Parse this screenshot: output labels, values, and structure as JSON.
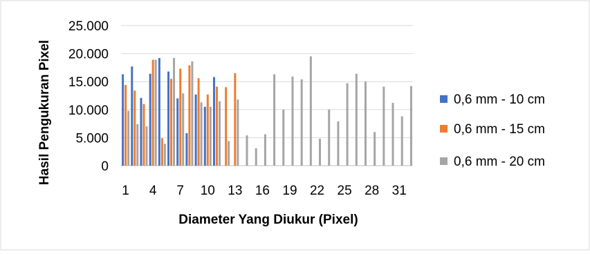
{
  "chart_data": {
    "type": "bar",
    "title": "",
    "xlabel": "Diameter Yang Diukur (Pixel)",
    "ylabel": "Hasil Pengukuran Pixel",
    "ylim": [
      0,
      25000
    ],
    "y_ticks": [
      "0",
      "5.000",
      "10.000",
      "15.000",
      "20.000",
      "25.000"
    ],
    "x_ticks": [
      "1",
      "4",
      "7",
      "10",
      "13",
      "16",
      "19",
      "22",
      "25",
      "28",
      "31"
    ],
    "categories": [
      1,
      2,
      3,
      4,
      5,
      6,
      7,
      8,
      9,
      10,
      11,
      12,
      13,
      14,
      15,
      16,
      17,
      18,
      19,
      20,
      21,
      22,
      23,
      24,
      25,
      26,
      27,
      28,
      29,
      30,
      31,
      32
    ],
    "grid": "horizontal",
    "legend_position": "right",
    "series": [
      {
        "name": "0,6 mm - 10 cm",
        "color": "#4472C4",
        "values": [
          16300,
          17700,
          12100,
          16400,
          19200,
          16800,
          12000,
          5800,
          12700,
          10500,
          15800,
          null,
          null,
          null,
          null,
          null,
          null,
          null,
          null,
          null,
          null,
          null,
          null,
          null,
          null,
          null,
          null,
          null,
          null,
          null,
          null,
          null
        ]
      },
      {
        "name": "0,6 mm - 15 cm",
        "color": "#ED7D31",
        "values": [
          14400,
          13400,
          11000,
          18900,
          4900,
          15500,
          17300,
          17900,
          15600,
          12700,
          14100,
          14000,
          16500,
          null,
          null,
          null,
          null,
          null,
          null,
          null,
          null,
          null,
          null,
          null,
          null,
          null,
          null,
          null,
          null,
          null,
          null,
          null
        ]
      },
      {
        "name": "0,6 mm - 20 cm",
        "color": "#A5A5A5",
        "values": [
          9800,
          7400,
          7000,
          18900,
          3900,
          19200,
          12900,
          18600,
          11300,
          10500,
          11500,
          4400,
          11800,
          5400,
          3100,
          5600,
          16300,
          10000,
          15900,
          15400,
          19500,
          4800,
          10000,
          7900,
          14700,
          16400,
          15000,
          6000,
          14100,
          11200,
          8800,
          14200
        ]
      }
    ]
  }
}
